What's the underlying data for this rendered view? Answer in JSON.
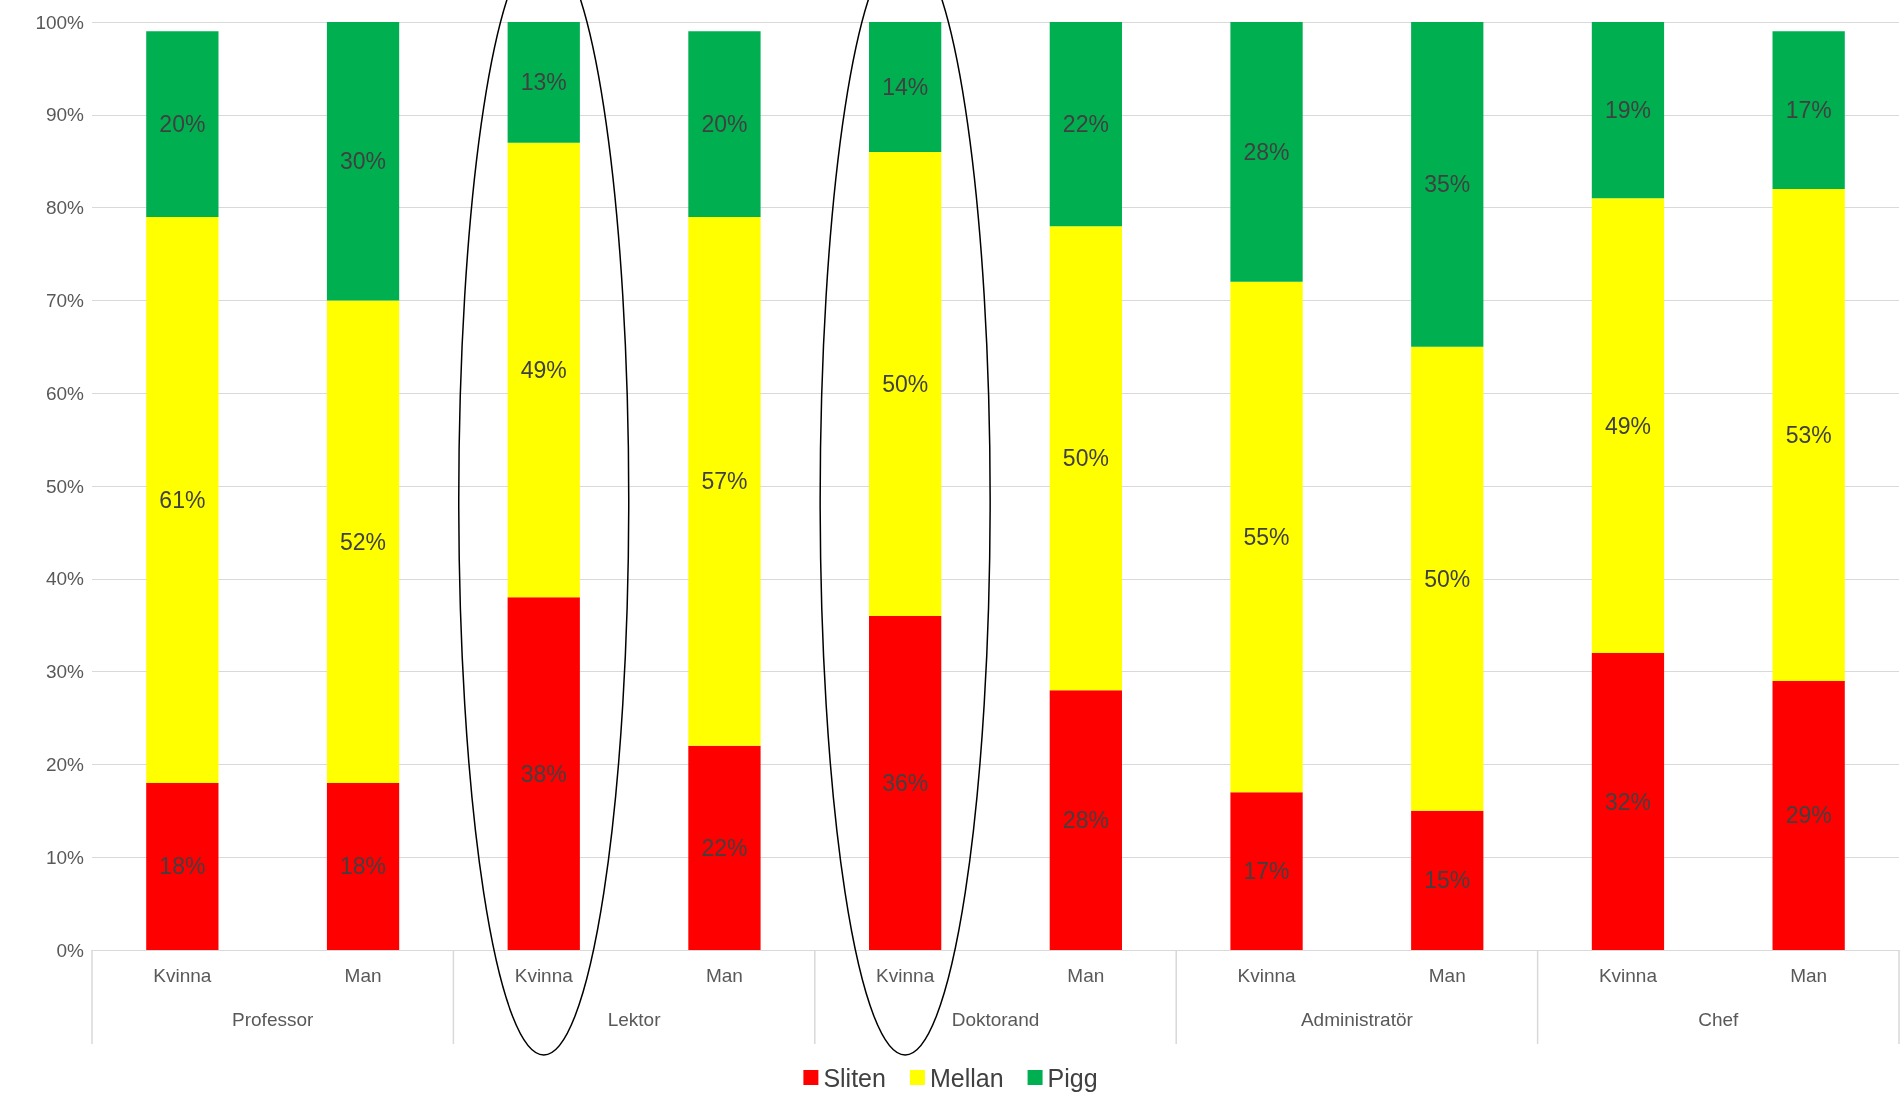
{
  "chart_data": {
    "type": "bar",
    "stacked": true,
    "categories": [
      "Kvinna",
      "Man",
      "Kvinna",
      "Man",
      "Kvinna",
      "Man",
      "Kvinna",
      "Man",
      "Kvinna",
      "Man"
    ],
    "series": [
      {
        "name": "Sliten",
        "color": "#ff0000",
        "values": [
          18,
          18,
          38,
          22,
          36,
          28,
          17,
          15,
          32,
          29
        ],
        "value_labels": [
          "18%",
          "18%",
          "38%",
          "22%",
          "36%",
          "28%",
          "17%",
          "15%",
          "32%",
          "29%"
        ]
      },
      {
        "name": "Mellan",
        "color": "#ffff00",
        "values": [
          61,
          52,
          49,
          57,
          50,
          50,
          55,
          50,
          49,
          53
        ],
        "value_labels": [
          "61%",
          "52%",
          "49%",
          "57%",
          "50%",
          "50%",
          "55%",
          "50%",
          "49%",
          "53%"
        ]
      },
      {
        "name": "Pigg",
        "color": "#00b050",
        "values": [
          20,
          30,
          13,
          20,
          14,
          22,
          28,
          35,
          19,
          17
        ],
        "value_labels": [
          "20%",
          "30%",
          "13%",
          "20%",
          "14%",
          "22%",
          "28%",
          "35%",
          "19%",
          "17%"
        ]
      }
    ],
    "annotations": [
      "Professor",
      "Lektor",
      "Doktorand",
      "Administratör",
      "Chef"
    ],
    "ylim": [
      0,
      100
    ],
    "yticks": [
      {
        "value": 0,
        "label": "0%"
      },
      {
        "value": 10,
        "label": "10%"
      },
      {
        "value": 20,
        "label": "20%"
      },
      {
        "value": 30,
        "label": "30%"
      },
      {
        "value": 40,
        "label": "40%"
      },
      {
        "value": 50,
        "label": "50%"
      },
      {
        "value": 60,
        "label": "60%"
      },
      {
        "value": 70,
        "label": "70%"
      },
      {
        "value": 80,
        "label": "80%"
      },
      {
        "value": 90,
        "label": "90%"
      },
      {
        "value": 100,
        "label": "100%"
      }
    ],
    "grid": "y",
    "legend": "bottom"
  }
}
